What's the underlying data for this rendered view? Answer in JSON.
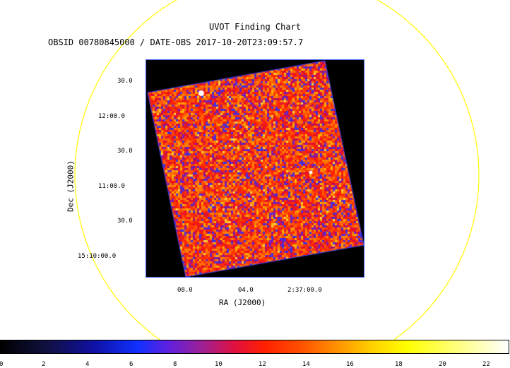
{
  "title": "UVOT Finding Chart",
  "subtitle": "OBSID 00780845000 / DATE-OBS 2017-10-20T23:09:57.7",
  "dec_axis": {
    "label": "Dec (J2000)",
    "ticks": [
      "30.0",
      "12:00.0",
      "30.0",
      "11:00.0",
      "30.0",
      "15:10:00.0"
    ]
  },
  "ra_axis": {
    "label": "RA (J2000)",
    "ticks": [
      "08.0",
      "04.0",
      "2:37:00.0"
    ]
  },
  "colorbar": {
    "ticks": [
      "0",
      "2",
      "4",
      "6",
      "8",
      "10",
      "12",
      "14",
      "16",
      "18",
      "20",
      "22"
    ]
  },
  "colors": {
    "circle": "#ffff00",
    "frame_border": "#4060ff",
    "footprint_border": "#3040ff"
  }
}
